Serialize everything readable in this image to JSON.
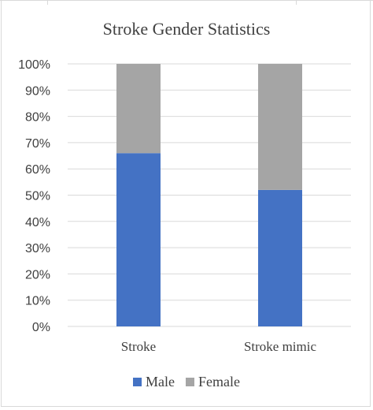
{
  "chart_data": {
    "type": "bar",
    "stacked": true,
    "title": "Stroke Gender Statistics",
    "categories": [
      "Stroke",
      "Stroke mimic"
    ],
    "series": [
      {
        "name": "Male",
        "values": [
          66,
          52
        ],
        "color": "#4472C4"
      },
      {
        "name": "Female",
        "values": [
          34,
          48
        ],
        "color": "#A5A5A5"
      }
    ],
    "yticks": [
      "0%",
      "10%",
      "20%",
      "30%",
      "40%",
      "50%",
      "60%",
      "70%",
      "80%",
      "90%",
      "100%"
    ],
    "ylim": [
      0,
      100
    ],
    "grid": true,
    "legend": "bottom"
  }
}
